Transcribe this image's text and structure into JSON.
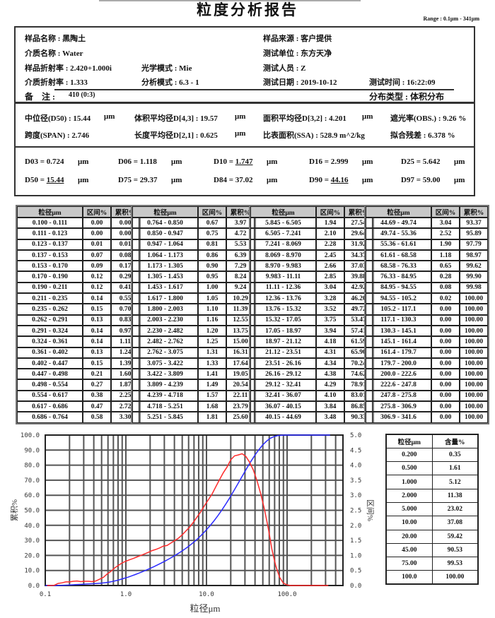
{
  "title": "粒度分析报告",
  "range": "Range : 0.1μm - 341μm",
  "info": {
    "sample_name": "样品名称 : 黑陶土",
    "sample_source": "样品来源 : 客户提供",
    "medium_name": "介质名称 : Water",
    "test_unit": "测试单位 : 东方天净",
    "sample_ri": "样品折射率 : 2.420+1.000i",
    "optical_mode": "光学模式 : Mie",
    "operator": "测试人员 : Z",
    "medium_ri": "介质折射率 : 1.333",
    "analysis_mode": "分析模式 : 6.3 - 1",
    "test_date": "测试日期 : 2019-10-12",
    "test_time": "测试时间 : 16:22:09",
    "remark_label": "备　注 :",
    "remark_value": "410  (0:3)",
    "dist_type": "分布类型 : 体积分布"
  },
  "metrics": {
    "d50": "中位径(D50) : 15.44",
    "d43": "体积平均径D[4,3] : 19.57",
    "d32": "面积平均径D[3,2] : 4.201",
    "obscuration": "遮光率(OBS.) : 9.26  %",
    "span": "跨度(SPAN) : 2.746",
    "d21": "长度平均径D[2,1] : 0.625",
    "ssa": "比表面积(SSA) : 528.9  m^2/kg",
    "residual": "拟合残差 : 6.378  %",
    "unit": "μm"
  },
  "dvalues": [
    {
      "label": "D03 = ",
      "value": "0.724",
      "underline": false
    },
    {
      "label": "D06 = ",
      "value": "1.118",
      "underline": false
    },
    {
      "label": "D10 = ",
      "value": "1.747",
      "underline": true
    },
    {
      "label": "D16 = ",
      "value": "2.999",
      "underline": false
    },
    {
      "label": "D25 = ",
      "value": "5.642",
      "underline": false
    },
    {
      "label": "D50 = ",
      "value": "15.44",
      "underline": true
    },
    {
      "label": "D75 = ",
      "value": "29.37",
      "underline": false
    },
    {
      "label": "D84 = ",
      "value": "37.02",
      "underline": false
    },
    {
      "label": "D90 = ",
      "value": "44.16",
      "underline": true
    },
    {
      "label": "D97 = ",
      "value": "59.00",
      "underline": false
    }
  ],
  "dunit": "μm",
  "table": {
    "headers": [
      "粒径μm",
      "区间%",
      "累积%"
    ],
    "columns": [
      [
        [
          "0.100 - 0.111",
          "0.00",
          "0.00"
        ],
        [
          "0.111 - 0.123",
          "0.00",
          "0.00"
        ],
        [
          "0.123 - 0.137",
          "0.01",
          "0.01"
        ],
        [
          "0.137 - 0.153",
          "0.07",
          "0.08"
        ],
        [
          "0.153 - 0.170",
          "0.09",
          "0.17"
        ],
        [
          "0.170 - 0.190",
          "0.12",
          "0.29"
        ],
        [
          "0.190 - 0.211",
          "0.12",
          "0.41"
        ],
        [
          "0.211 - 0.235",
          "0.14",
          "0.55"
        ],
        [
          "0.235 - 0.262",
          "0.15",
          "0.70"
        ],
        [
          "0.262 - 0.291",
          "0.13",
          "0.83"
        ],
        [
          "0.291 - 0.324",
          "0.14",
          "0.97"
        ],
        [
          "0.324 - 0.361",
          "0.14",
          "1.11"
        ],
        [
          "0.361 - 0.402",
          "0.13",
          "1.24"
        ],
        [
          "0.402 - 0.447",
          "0.15",
          "1.39"
        ],
        [
          "0.447 - 0.498",
          "0.21",
          "1.60"
        ],
        [
          "0.498 - 0.554",
          "0.27",
          "1.87"
        ],
        [
          "0.554 - 0.617",
          "0.38",
          "2.25"
        ],
        [
          "0.617 - 0.686",
          "0.47",
          "2.72"
        ],
        [
          "0.686 - 0.764",
          "0.58",
          "3.30"
        ]
      ],
      [
        [
          "0.764 - 0.850",
          "0.67",
          "3.97"
        ],
        [
          "0.850 - 0.947",
          "0.75",
          "4.72"
        ],
        [
          "0.947 - 1.064",
          "0.81",
          "5.53"
        ],
        [
          "1.064 - 1.173",
          "0.86",
          "6.39"
        ],
        [
          "1.173 - 1.305",
          "0.90",
          "7.29"
        ],
        [
          "1.305 - 1.453",
          "0.95",
          "8.24"
        ],
        [
          "1.453 - 1.617",
          "1.00",
          "9.24"
        ],
        [
          "1.617 - 1.800",
          "1.05",
          "10.29"
        ],
        [
          "1.800 - 2.003",
          "1.10",
          "11.39"
        ],
        [
          "2.003 - 2.230",
          "1.16",
          "12.55"
        ],
        [
          "2.230 - 2.482",
          "1.20",
          "13.75"
        ],
        [
          "2.482 - 2.762",
          "1.25",
          "15.00"
        ],
        [
          "2.762 - 3.075",
          "1.31",
          "16.31"
        ],
        [
          "3.075 - 3.422",
          "1.33",
          "17.64"
        ],
        [
          "3.422 - 3.809",
          "1.41",
          "19.05"
        ],
        [
          "3.809 - 4.239",
          "1.49",
          "20.54"
        ],
        [
          "4.239 - 4.718",
          "1.57",
          "22.11"
        ],
        [
          "4.718 - 5.251",
          "1.68",
          "23.79"
        ],
        [
          "5.251 - 5.845",
          "1.81",
          "25.60"
        ]
      ],
      [
        [
          "5.845 - 6.505",
          "1.94",
          "27.54"
        ],
        [
          "6.505 - 7.241",
          "2.10",
          "29.64"
        ],
        [
          "7.241 - 8.069",
          "2.28",
          "31.92"
        ],
        [
          "8.069 - 8.970",
          "2.45",
          "34.37"
        ],
        [
          "8.970 - 9.983",
          "2.66",
          "37.03"
        ],
        [
          "9.983 - 11.11",
          "2.85",
          "39.88"
        ],
        [
          "11.11 - 12.36",
          "3.04",
          "42.92"
        ],
        [
          "12.36 - 13.76",
          "3.28",
          "46.20"
        ],
        [
          "13.76 - 15.32",
          "3.52",
          "49.72"
        ],
        [
          "15.32 - 17.05",
          "3.75",
          "53.47"
        ],
        [
          "17.05 - 18.97",
          "3.94",
          "57.41"
        ],
        [
          "18.97 - 21.12",
          "4.18",
          "61.59"
        ],
        [
          "21.12 - 23.51",
          "4.31",
          "65.90"
        ],
        [
          "23.51 - 26.16",
          "4.34",
          "70.24"
        ],
        [
          "26.16 - 29.12",
          "4.38",
          "74.62"
        ],
        [
          "29.12 - 32.41",
          "4.29",
          "78.91"
        ],
        [
          "32.41 - 36.07",
          "4.10",
          "83.01"
        ],
        [
          "36.07 - 40.15",
          "3.84",
          "86.85"
        ],
        [
          "40.15 - 44.69",
          "3.48",
          "90.33"
        ]
      ],
      [
        [
          "44.69 - 49.74",
          "3.04",
          "93.37"
        ],
        [
          "49.74 - 55.36",
          "2.52",
          "95.89"
        ],
        [
          "55.36 - 61.61",
          "1.90",
          "97.79"
        ],
        [
          "61.61 - 68.58",
          "1.18",
          "98.97"
        ],
        [
          "68.58 - 76.33",
          "0.65",
          "99.62"
        ],
        [
          "76.33 - 84.95",
          "0.28",
          "99.90"
        ],
        [
          "84.95 - 94.55",
          "0.08",
          "99.98"
        ],
        [
          "94.55 - 105.2",
          "0.02",
          "100.00"
        ],
        [
          "105.2 - 117.1",
          "0.00",
          "100.00"
        ],
        [
          "117.1 - 130.3",
          "0.00",
          "100.00"
        ],
        [
          "130.3 - 145.1",
          "0.00",
          "100.00"
        ],
        [
          "145.1 - 161.4",
          "0.00",
          "100.00"
        ],
        [
          "161.4 - 179.7",
          "0.00",
          "100.00"
        ],
        [
          "179.7 - 200.0",
          "0.00",
          "100.00"
        ],
        [
          "200.0 - 222.6",
          "0.00",
          "100.00"
        ],
        [
          "222.6 - 247.8",
          "0.00",
          "100.00"
        ],
        [
          "247.8 - 275.8",
          "0.00",
          "100.00"
        ],
        [
          "275.8 - 306.9",
          "0.00",
          "100.00"
        ],
        [
          "306.9 - 341.6",
          "0.00",
          "100.00"
        ]
      ]
    ]
  },
  "chart_data": {
    "type": "line",
    "xlabel": "粒径μm",
    "ylabel_left": "累积%",
    "ylabel_right": "区间%",
    "x_scale": "log",
    "xlim": [
      0.1,
      500
    ],
    "x_ticks": [
      "0.1",
      "1.0",
      "10.0",
      "100.0"
    ],
    "ylim_left": [
      0,
      100
    ],
    "ylim_right": [
      0,
      5
    ],
    "y_ticks_left": [
      "0.0",
      "10.0",
      "20.0",
      "30.0",
      "40.0",
      "50.0",
      "60.0",
      "70.0",
      "80.0",
      "90.0",
      "100.0"
    ],
    "y_ticks_right": [
      "0.0",
      "0.5",
      "1.0",
      "1.5",
      "2.0",
      "2.5",
      "3.0",
      "3.5",
      "4.0",
      "4.5",
      "5.0"
    ],
    "grid": true,
    "series_source": "table",
    "series": [
      {
        "axis": "left",
        "color": "#2b2bff",
        "field": "cumulative"
      },
      {
        "axis": "right",
        "color": "#ff2b2b",
        "field": "interval"
      }
    ]
  },
  "small_table": {
    "headers": [
      "粒径μm",
      "含量%"
    ],
    "rows": [
      [
        "0.200",
        "0.35"
      ],
      [
        "0.500",
        "1.61"
      ],
      [
        "1.000",
        "5.12"
      ],
      [
        "2.000",
        "11.38"
      ],
      [
        "5.000",
        "23.02"
      ],
      [
        "10.00",
        "37.08"
      ],
      [
        "20.00",
        "59.42"
      ],
      [
        "45.00",
        "90.53"
      ],
      [
        "75.00",
        "99.53"
      ],
      [
        "100.0",
        "100.00"
      ]
    ]
  }
}
